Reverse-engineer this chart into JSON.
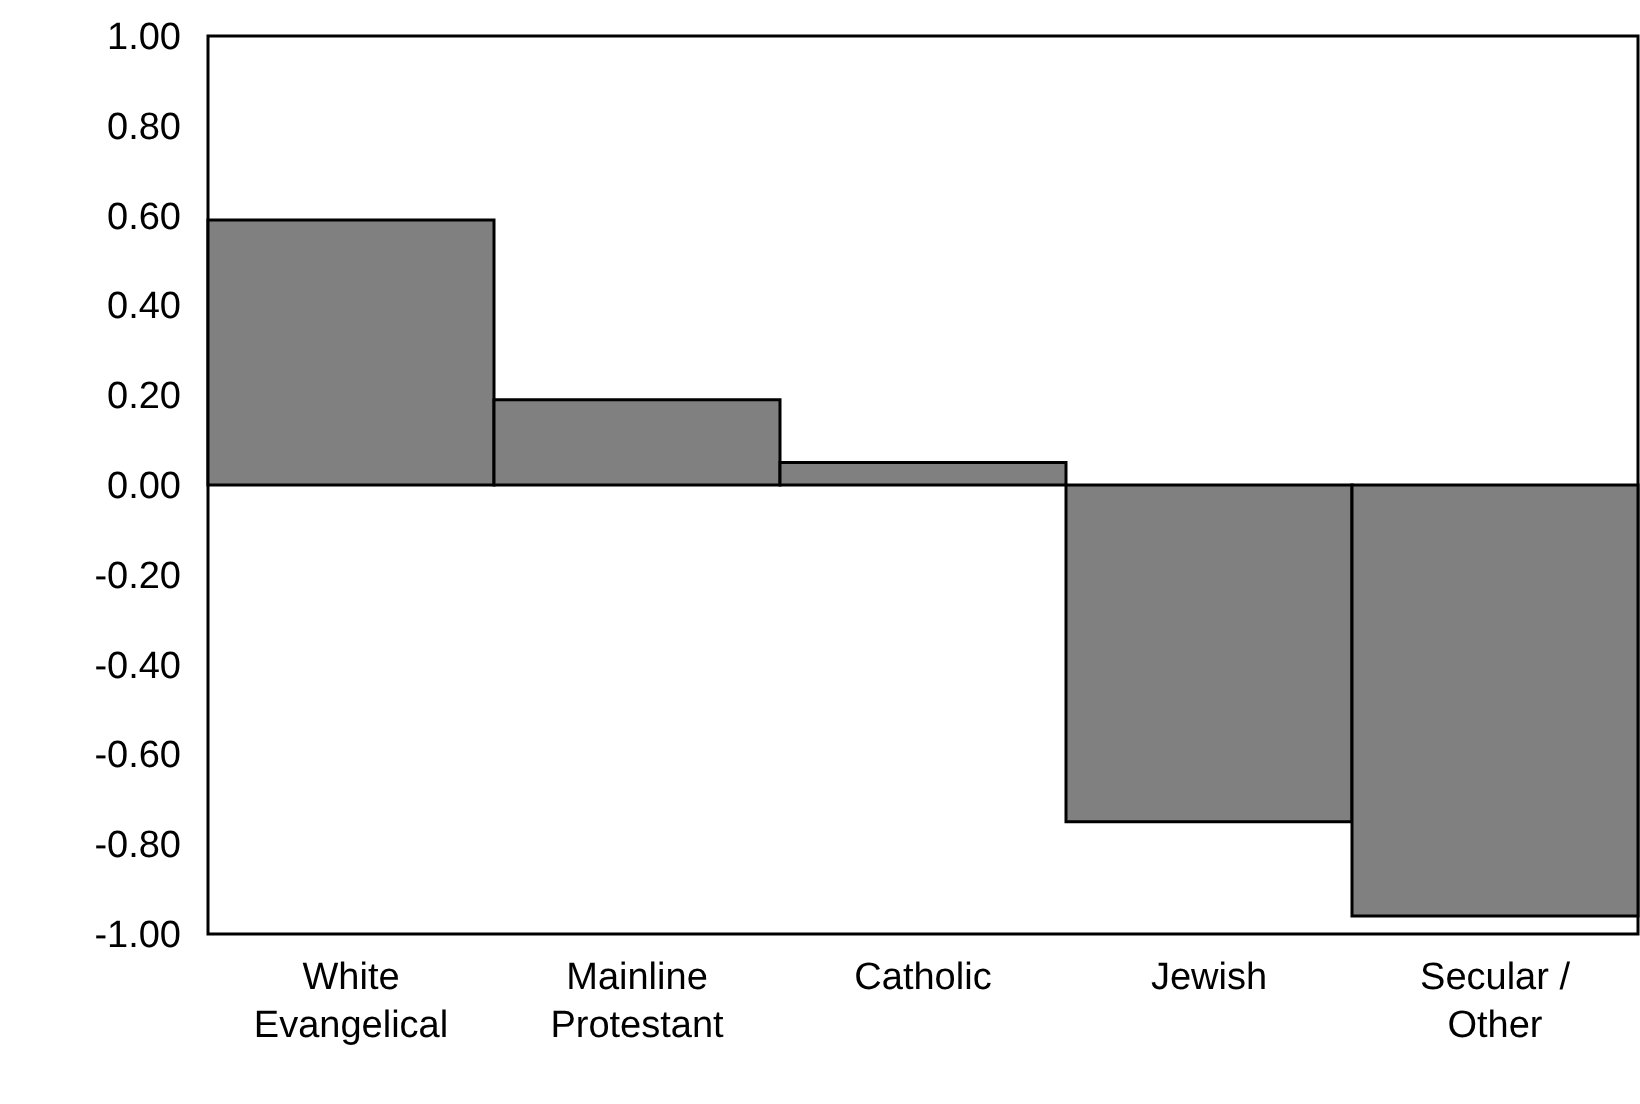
{
  "chart_data": {
    "type": "bar",
    "categories": [
      "White Evangelical",
      "Mainline Protestant",
      "Catholic",
      "Jewish",
      "Secular / Other"
    ],
    "values": [
      0.59,
      0.19,
      0.05,
      -0.75,
      -0.96
    ],
    "color": "#808080",
    "ylim": [
      -1,
      1
    ],
    "yticks": [
      {
        "value": -1,
        "label": "-1.00"
      },
      {
        "value": -0.8,
        "label": "-0.80"
      },
      {
        "value": -0.6,
        "label": "-0.60"
      },
      {
        "value": -0.4,
        "label": "-0.40"
      },
      {
        "value": -0.2,
        "label": "-0.20"
      },
      {
        "value": 0,
        "label": "0.00"
      },
      {
        "value": 0.2,
        "label": "0.20"
      },
      {
        "value": 0.4,
        "label": "0.40"
      },
      {
        "value": 0.6,
        "label": "0.60"
      },
      {
        "value": 0.8,
        "label": "0.80"
      },
      {
        "value": 1,
        "label": "1.00"
      }
    ],
    "grid": false
  }
}
